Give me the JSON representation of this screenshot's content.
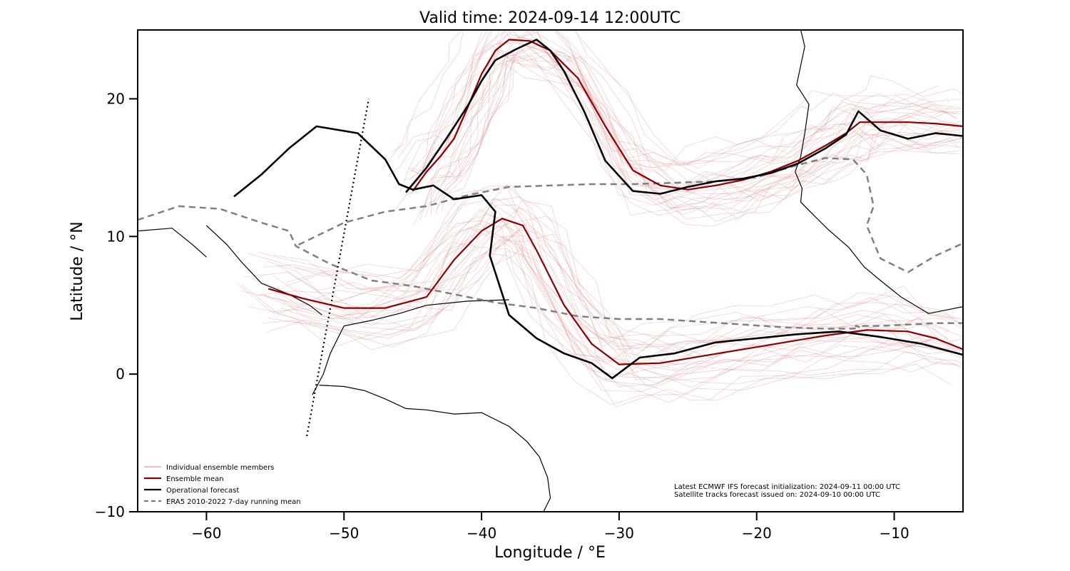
{
  "chart_data": {
    "type": "line",
    "title": "Valid time: 2024-09-14 12:00UTC",
    "xlabel": "Longitude / °E",
    "ylabel": "Latitude / °N",
    "xlim": [
      -65,
      -5
    ],
    "ylim": [
      -10,
      25
    ],
    "xticks": [
      -60,
      -50,
      -40,
      -30,
      -20,
      -10
    ],
    "yticks": [
      -10,
      0,
      10,
      20
    ],
    "xtick_labels": [
      "−60",
      "−50",
      "−40",
      "−30",
      "−20",
      "−10"
    ],
    "ytick_labels": [
      "−10",
      "0",
      "10",
      "20"
    ],
    "grid": false,
    "legend_position": "bottom-left",
    "legend": [
      {
        "label": "Individual ensemble members",
        "color": "#e07a7a",
        "style": "thin"
      },
      {
        "label": "Ensemble mean",
        "color": "#8b0000",
        "style": "solid"
      },
      {
        "label": "Operational forecast",
        "color": "#000000",
        "style": "solid"
      },
      {
        "label": "ERA5 2010-2022 7-day running mean",
        "color": "#808080",
        "style": "dashed"
      }
    ],
    "annotations": [
      "Latest ECMWF IFS forecast initialization: 2024-09-11 00:00 UTC",
      "Satellite tracks forecast issued on: 2024-09-10 00:00 UTC"
    ],
    "satellite_track": {
      "x": [
        -52.7,
        -48.2
      ],
      "y": [
        -4.5,
        20
      ]
    },
    "series": [
      {
        "name": "ERA5 2010-2022 7-day running mean",
        "color": "#808080",
        "style": "dashed",
        "x": [
          -65,
          -62,
          -59,
          -56,
          -54,
          -53.5,
          -51,
          -48,
          -45,
          -42,
          -39,
          -36,
          -33,
          -30,
          -27,
          -24,
          -21,
          -18,
          -15,
          -13,
          -12.5,
          -12.8,
          -11,
          -9,
          -7,
          -5
        ],
        "y": [
          11.2,
          12.2,
          12,
          11,
          10.4,
          9.3,
          8,
          6.8,
          6.4,
          5.8,
          5.2,
          4.8,
          4.2,
          4,
          4,
          3.8,
          3.6,
          3.4,
          3.3,
          3.3,
          3.4,
          3.5,
          3.5,
          3.6,
          3.7,
          3.7
        ]
      },
      {
        "name": "ERA5 2010-2022 7-day running mean",
        "color": "#808080",
        "style": "dashed",
        "x": [
          -53.3,
          -50,
          -47,
          -44,
          -41,
          -38,
          -35,
          -32,
          -29,
          -26,
          -23,
          -20,
          -17,
          -15,
          -13,
          -12,
          -11.5,
          -12,
          -11,
          -9,
          -7,
          -5
        ],
        "y": [
          9.4,
          11,
          11.8,
          12.2,
          13,
          13.6,
          13.7,
          13.8,
          13.8,
          13.9,
          14,
          14.3,
          15.2,
          15.7,
          15.6,
          14.5,
          12.2,
          10.8,
          8.4,
          7.4,
          8.6,
          9.5
        ]
      },
      {
        "name": "Ensemble mean",
        "color": "#8b0000",
        "style": "solid",
        "x": [
          -45,
          -44,
          -43,
          -42,
          -41,
          -40,
          -39,
          -38,
          -36.5,
          -35,
          -33,
          -31,
          -29,
          -27,
          -25,
          -23,
          -21,
          -19,
          -17,
          -15,
          -13.5,
          -12.5,
          -11,
          -9,
          -7,
          -5
        ],
        "y": [
          13.3,
          14.7,
          15.8,
          17.1,
          19.4,
          21.8,
          23.5,
          24.3,
          24.2,
          23.5,
          21.5,
          18,
          14.8,
          13.7,
          13.4,
          13.7,
          14.1,
          14.7,
          15.5,
          16.6,
          17.5,
          18.3,
          18.3,
          18.3,
          18.2,
          18
        ]
      },
      {
        "name": "Ensemble mean",
        "color": "#8b0000",
        "style": "solid",
        "x": [
          -55.5,
          -53,
          -50,
          -47,
          -44,
          -42,
          -40,
          -38.5,
          -37,
          -36,
          -34,
          -32,
          -30,
          -27,
          -24,
          -21,
          -18,
          -15,
          -12,
          -9,
          -7,
          -5
        ],
        "y": [
          6.2,
          5.5,
          4.8,
          4.8,
          5.6,
          8.3,
          10.4,
          11.3,
          10.8,
          9,
          5,
          2.2,
          0.7,
          0.8,
          1.3,
          1.8,
          2.3,
          2.8,
          3.2,
          3.1,
          2.6,
          1.8
        ]
      },
      {
        "name": "Operational forecast",
        "color": "#000000",
        "style": "solid",
        "x": [
          -45.5,
          -44,
          -42.5,
          -41,
          -40,
          -39,
          -37.5,
          -36,
          -35,
          -34,
          -32.5,
          -31,
          -29,
          -27,
          -25,
          -23,
          -21,
          -19,
          -17,
          -15,
          -13.5,
          -12.6,
          -11,
          -9,
          -7,
          -5
        ],
        "y": [
          13.2,
          15,
          17.2,
          19.5,
          21.3,
          22.8,
          23.6,
          24.3,
          23.5,
          22,
          19,
          15.5,
          13.3,
          13.1,
          13.6,
          14,
          14.2,
          14.6,
          15.3,
          16.4,
          17.4,
          19.1,
          17.7,
          17.1,
          17.5,
          17.3
        ]
      },
      {
        "name": "Operational forecast",
        "color": "#000000",
        "style": "solid",
        "x": [
          -58,
          -56,
          -54,
          -52,
          -49,
          -47,
          -46,
          -45,
          -43.5,
          -42,
          -40,
          -39,
          -39.4,
          -38,
          -36,
          -34,
          -32,
          -30.5,
          -28.5,
          -26,
          -23,
          -20,
          -17,
          -14,
          -11,
          -8,
          -5
        ],
        "y": [
          12.9,
          14.5,
          16.4,
          18,
          17.5,
          15.6,
          13.8,
          13.4,
          13.7,
          12.7,
          13,
          11.8,
          8.6,
          4.3,
          2.6,
          1.5,
          0.8,
          -0.3,
          1.2,
          1.5,
          2.3,
          2.6,
          2.9,
          3.1,
          2.7,
          2.2,
          1.4
        ]
      }
    ]
  }
}
